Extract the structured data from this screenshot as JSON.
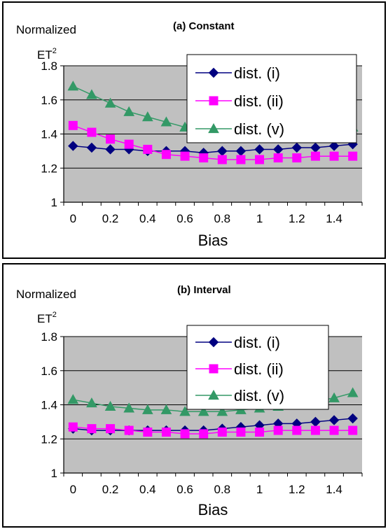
{
  "chart_data": [
    {
      "type": "line",
      "title": "(a) Constant",
      "ylabel": "Normalized",
      "ylabel2": "ET",
      "ylabel2_sup": "2",
      "xlabel": "Bias",
      "ylim": [
        1,
        1.8
      ],
      "xlim": [
        0,
        1.5
      ],
      "y_ticks": [
        "1",
        "1.2",
        "1.4",
        "1.6",
        "1.8"
      ],
      "x_ticks": [
        "0",
        "0.2",
        "0.4",
        "0.6",
        "0.8",
        "1",
        "1.2",
        "1.4"
      ],
      "x_tick_values": [
        0,
        0.2,
        0.4,
        0.6,
        0.8,
        1,
        1.2,
        1.4
      ],
      "grid": true,
      "legend_position": "top-right",
      "x": [
        0,
        0.1,
        0.2,
        0.3,
        0.4,
        0.5,
        0.6,
        0.7,
        0.8,
        0.9,
        1.0,
        1.1,
        1.2,
        1.3,
        1.4,
        1.5
      ],
      "series": [
        {
          "name": "dist. (i)",
          "color": "#000080",
          "marker": "diamond",
          "values": [
            1.33,
            1.32,
            1.31,
            1.31,
            1.3,
            1.3,
            1.3,
            1.29,
            1.3,
            1.3,
            1.31,
            1.31,
            1.32,
            1.32,
            1.33,
            1.34
          ]
        },
        {
          "name": "dist. (ii)",
          "color": "#FF00FF",
          "marker": "square",
          "values": [
            1.45,
            1.41,
            1.37,
            1.34,
            1.31,
            1.28,
            1.27,
            1.26,
            1.25,
            1.25,
            1.25,
            1.26,
            1.26,
            1.27,
            1.27,
            1.27
          ]
        },
        {
          "name": "dist. (v)",
          "color": "#339966",
          "marker": "triangle",
          "values": [
            1.68,
            1.63,
            1.58,
            1.53,
            1.5,
            1.47,
            1.44,
            1.42,
            1.41,
            1.4,
            1.4,
            1.4,
            1.41,
            1.42,
            1.43,
            1.44
          ]
        }
      ]
    },
    {
      "type": "line",
      "title": "(b) Interval",
      "ylabel": "Normalized",
      "ylabel2": "ET",
      "ylabel2_sup": "2",
      "xlabel": "Bias",
      "ylim": [
        1,
        1.8
      ],
      "xlim": [
        0,
        1.5
      ],
      "y_ticks": [
        "1",
        "1.2",
        "1.4",
        "1.6",
        "1.8"
      ],
      "x_ticks": [
        "0",
        "0.2",
        "0.4",
        "0.6",
        "0.8",
        "1",
        "1.2",
        "1.4"
      ],
      "x_tick_values": [
        0,
        0.2,
        0.4,
        0.6,
        0.8,
        1,
        1.2,
        1.4
      ],
      "grid": true,
      "legend_position": "top-right",
      "x": [
        0,
        0.1,
        0.2,
        0.3,
        0.4,
        0.5,
        0.6,
        0.7,
        0.8,
        0.9,
        1.0,
        1.1,
        1.2,
        1.3,
        1.4,
        1.5
      ],
      "series": [
        {
          "name": "dist. (i)",
          "color": "#000080",
          "marker": "diamond",
          "values": [
            1.26,
            1.25,
            1.25,
            1.25,
            1.25,
            1.25,
            1.25,
            1.25,
            1.26,
            1.27,
            1.28,
            1.29,
            1.29,
            1.3,
            1.31,
            1.32
          ]
        },
        {
          "name": "dist. (ii)",
          "color": "#FF00FF",
          "marker": "square",
          "values": [
            1.27,
            1.26,
            1.26,
            1.25,
            1.24,
            1.24,
            1.23,
            1.23,
            1.24,
            1.24,
            1.24,
            1.25,
            1.25,
            1.25,
            1.25,
            1.25
          ]
        },
        {
          "name": "dist. (v)",
          "color": "#339966",
          "marker": "triangle",
          "values": [
            1.43,
            1.41,
            1.39,
            1.38,
            1.37,
            1.37,
            1.36,
            1.36,
            1.36,
            1.37,
            1.38,
            1.39,
            1.4,
            1.42,
            1.44,
            1.47
          ]
        }
      ]
    }
  ]
}
